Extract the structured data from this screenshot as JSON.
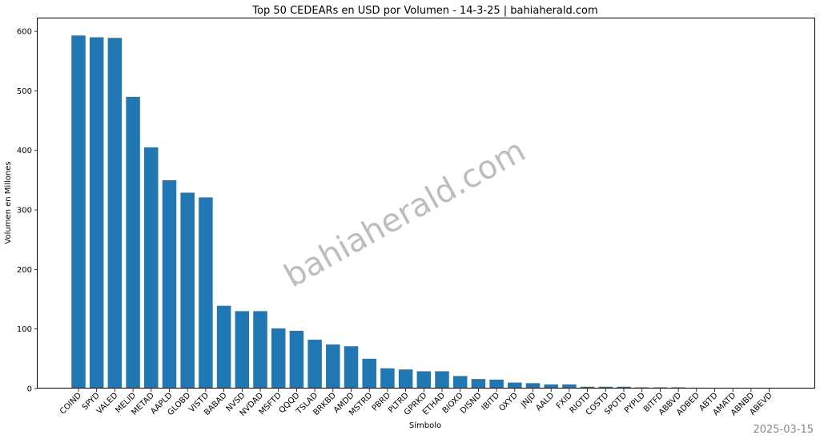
{
  "chart_data": {
    "type": "bar",
    "title": "Top 50 CEDEARs en USD por Volumen - 14-3-25 | bahiaherald.com",
    "xlabel": "Símbolo",
    "ylabel": "Volumen en Millones",
    "ylim": [
      0,
      623
    ],
    "yticks": [
      0,
      100,
      200,
      300,
      400,
      500,
      600
    ],
    "grid": false,
    "bar_color": "#1f77b4",
    "categories": [
      "COIND",
      "SPYD",
      "VALED",
      "MELID",
      "METAD",
      "AAPLD",
      "GLOBD",
      "VISTD",
      "BABAD",
      "NVSD",
      "NVDAD",
      "MSFTD",
      "QQQD",
      "TSLAD",
      "BRKBD",
      "AMDD",
      "MSTRD",
      "PBRD",
      "PLTRD",
      "GPRKD",
      "ETHAD",
      "BIOXD",
      "DISND",
      "IBITD",
      "OXYD",
      "JNJD",
      "AALD",
      "FXID",
      "RIOTD",
      "COSTD",
      "SPOTD",
      "PYPLD",
      "BITFD",
      "ABBVD",
      "ADBED",
      "ABTD",
      "AMATD",
      "ABNBD",
      "ABEVD"
    ],
    "values": [
      593,
      590,
      589,
      490,
      405,
      350,
      329,
      321,
      139,
      130,
      130,
      101,
      97,
      82,
      74,
      71,
      50,
      34,
      32,
      29,
      29,
      21,
      16,
      15,
      10,
      9,
      7,
      7,
      3,
      3,
      3,
      2,
      2,
      2,
      1.5,
      1.2,
      1.0,
      0.5,
      0.3
    ]
  },
  "watermark": "bahiaherald.com",
  "date_stamp": "2025-03-15"
}
